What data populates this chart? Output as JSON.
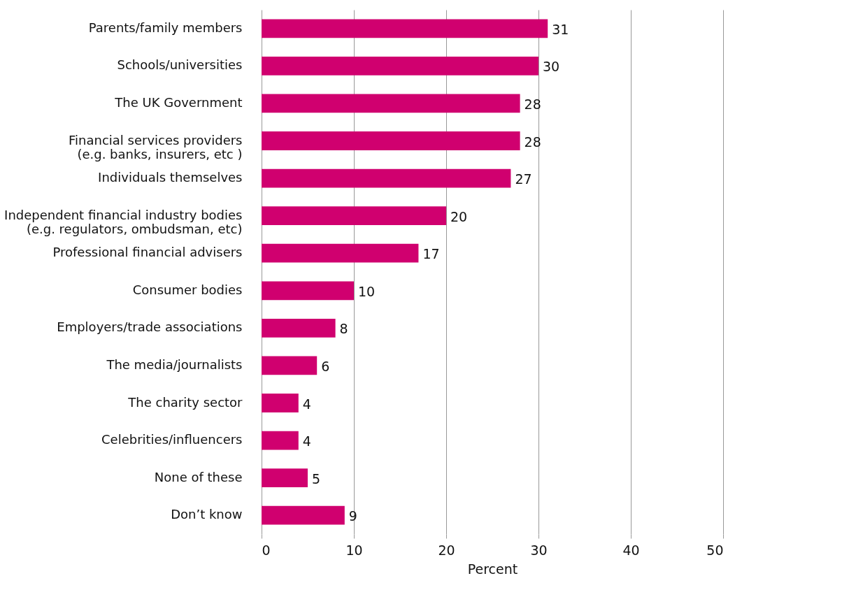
{
  "chart_data": {
    "type": "bar",
    "orientation": "horizontal",
    "xlabel": "Percent",
    "categories": [
      "Parents/family members",
      "Schools/universities",
      "The UK Government",
      "Financial services providers\n(e.g. banks, insurers, etc )",
      "Individuals themselves",
      "Independent financial industry bodies\n(e.g. regulators, ombudsman, etc)",
      "Professional financial advisers",
      "Consumer bodies",
      "Employers/trade associations",
      "The media/journalists",
      "The charity sector",
      "Celebrities/influencers",
      "None of these",
      "Don’t know"
    ],
    "values": [
      31,
      30,
      28,
      28,
      27,
      20,
      17,
      10,
      8,
      6,
      4,
      4,
      5,
      9
    ],
    "color": "#d0006f",
    "xlim": [
      0,
      50
    ],
    "xticks": [
      0,
      10,
      20,
      30,
      40,
      50
    ],
    "grid": "x",
    "data_labels": true
  }
}
